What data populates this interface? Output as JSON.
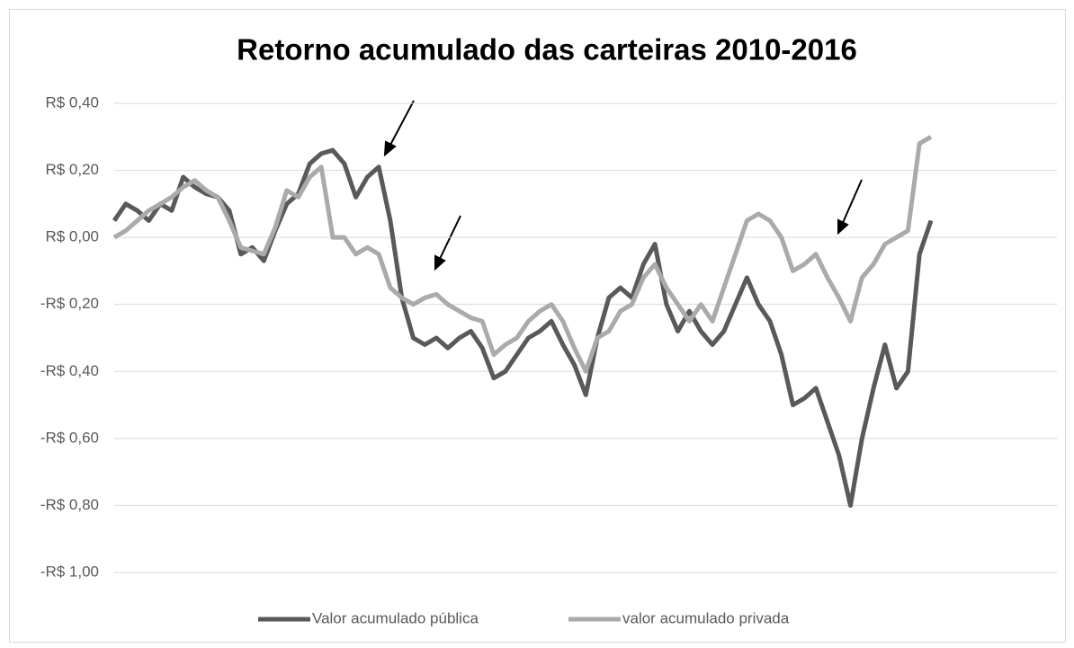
{
  "chart_data": {
    "type": "line",
    "title": "Retorno acumulado das carteiras 2010-2016",
    "ylim": [
      -1,
      0.4
    ],
    "yticks": [
      {
        "value": 0.4,
        "label": "R$ 0,40"
      },
      {
        "value": 0.2,
        "label": "R$ 0,20"
      },
      {
        "value": 0,
        "label": "R$ 0,00"
      },
      {
        "value": -0.2,
        "label": "-R$ 0,20"
      },
      {
        "value": -0.4,
        "label": "-R$ 0,40"
      },
      {
        "value": -0.6,
        "label": "-R$ 0,60"
      },
      {
        "value": -0.8,
        "label": "-R$ 0,80"
      },
      {
        "value": -1,
        "label": "-R$ 1,00"
      }
    ],
    "grid": true,
    "legend": "bottom",
    "series": [
      {
        "name": "Valor acumulado pública",
        "color": "#595959",
        "values": [
          0.05,
          0.1,
          0.08,
          0.05,
          0.1,
          0.08,
          0.18,
          0.15,
          0.13,
          0.12,
          0.08,
          -0.05,
          -0.03,
          -0.07,
          0.02,
          0.1,
          0.13,
          0.22,
          0.25,
          0.26,
          0.22,
          0.12,
          0.18,
          0.21,
          0.05,
          -0.18,
          -0.3,
          -0.32,
          -0.3,
          -0.33,
          -0.3,
          -0.28,
          -0.33,
          -0.42,
          -0.4,
          -0.35,
          -0.3,
          -0.28,
          -0.25,
          -0.32,
          -0.38,
          -0.47,
          -0.3,
          -0.18,
          -0.15,
          -0.18,
          -0.08,
          -0.02,
          -0.2,
          -0.28,
          -0.22,
          -0.28,
          -0.32,
          -0.28,
          -0.2,
          -0.12,
          -0.2,
          -0.25,
          -0.35,
          -0.5,
          -0.48,
          -0.45,
          -0.55,
          -0.65,
          -0.8,
          -0.6,
          -0.45,
          -0.32,
          -0.45,
          -0.4,
          -0.05,
          0.05
        ]
      },
      {
        "name": "valor acumulado privada",
        "color": "#aaaaaa",
        "values": [
          0.0,
          0.02,
          0.05,
          0.08,
          0.1,
          0.12,
          0.15,
          0.17,
          0.14,
          0.12,
          0.05,
          -0.03,
          -0.04,
          -0.05,
          0.03,
          0.14,
          0.12,
          0.18,
          0.21,
          0.0,
          0.0,
          -0.05,
          -0.03,
          -0.05,
          -0.15,
          -0.18,
          -0.2,
          -0.18,
          -0.17,
          -0.2,
          -0.22,
          -0.24,
          -0.25,
          -0.35,
          -0.32,
          -0.3,
          -0.25,
          -0.22,
          -0.2,
          -0.25,
          -0.33,
          -0.4,
          -0.3,
          -0.28,
          -0.22,
          -0.2,
          -0.12,
          -0.08,
          -0.15,
          -0.2,
          -0.25,
          -0.2,
          -0.25,
          -0.15,
          -0.05,
          0.05,
          0.07,
          0.05,
          0.0,
          -0.1,
          -0.08,
          -0.05,
          -0.12,
          -0.18,
          -0.25,
          -0.12,
          -0.08,
          -0.02,
          0.0,
          0.02,
          0.28,
          0.3
        ]
      }
    ]
  }
}
